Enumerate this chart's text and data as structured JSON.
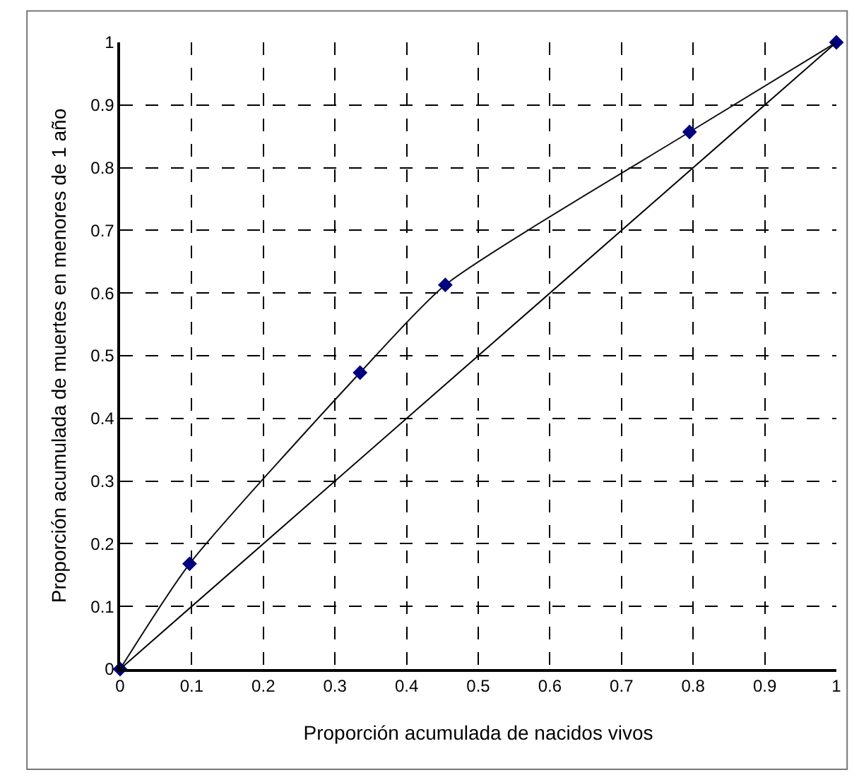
{
  "chart_data": {
    "type": "line",
    "xlabel": "Proporción acumulada de nacidos vivos",
    "ylabel": "Proporción acumulada de muertes en menores de 1 año",
    "series": [
      {
        "x": [
          0,
          0.097,
          0.335,
          0.454,
          0.795,
          1
        ],
        "values": [
          0,
          0.168,
          0.473,
          0.613,
          0.857,
          1
        ],
        "color": "#000080",
        "marker": "diamond"
      },
      {
        "x": [
          0,
          1
        ],
        "values": [
          0,
          1
        ],
        "color": "#000000",
        "marker": "none"
      }
    ],
    "xlim": [
      0,
      1
    ],
    "ylim": [
      0,
      1
    ],
    "xticks": [
      0,
      0.1,
      0.2,
      0.3,
      0.4,
      0.5,
      0.6,
      0.7,
      0.8,
      0.9,
      1
    ],
    "yticks": [
      0,
      0.1,
      0.2,
      0.3,
      0.4,
      0.5,
      0.6,
      0.7,
      0.8,
      0.9,
      1
    ],
    "grid": true,
    "line_style": "solid"
  }
}
